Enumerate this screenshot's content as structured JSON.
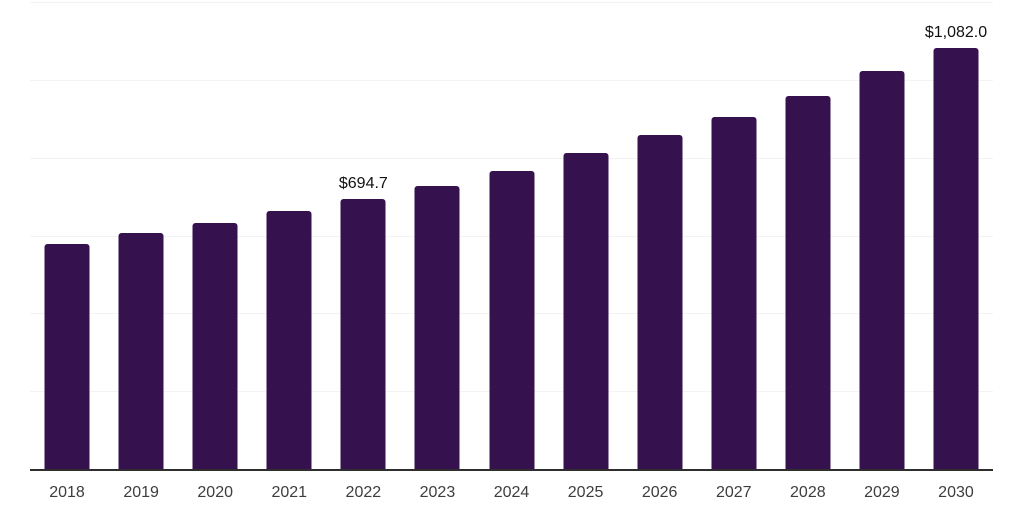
{
  "chart_data": {
    "type": "bar",
    "title": "",
    "xlabel": "",
    "ylabel": "",
    "categories": [
      "2018",
      "2019",
      "2020",
      "2021",
      "2022",
      "2023",
      "2024",
      "2025",
      "2026",
      "2027",
      "2028",
      "2029",
      "2030"
    ],
    "values": [
      578,
      606,
      632,
      662,
      694.7,
      727,
      766,
      811,
      857,
      905,
      958,
      1022,
      1082.0
    ],
    "data_labels": {
      "2022": "$694.7",
      "2030": "$1,082.0"
    },
    "ylim": [
      0,
      1200
    ],
    "gridline_step": 200,
    "grid": true,
    "legend": false,
    "y_tick_labels_visible": false,
    "colors": {
      "bar": "#35114e",
      "gridline": "#f3f3f3",
      "axis_line": "#2e2e2e",
      "value_label": "#111111",
      "tick_label": "#3d3d3d",
      "background": "#ffffff"
    }
  }
}
